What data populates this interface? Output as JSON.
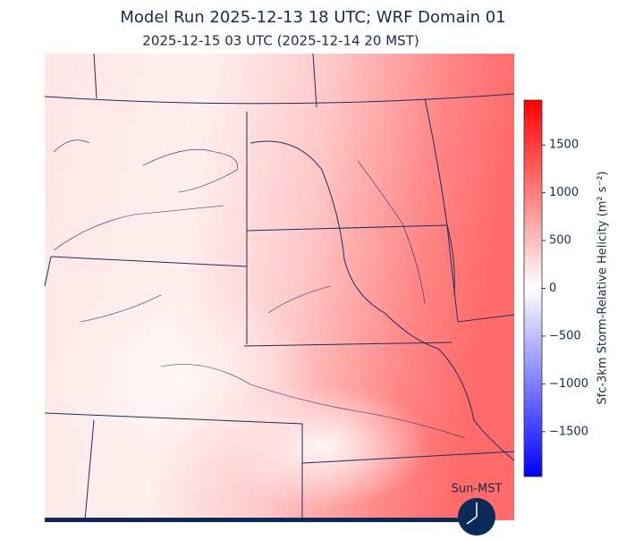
{
  "title": "Model Run 2025-12-13 18 UTC; WRF Domain 01",
  "subtitle": "2025-12-15 03 UTC  (2025-12-14 20 MST)",
  "colorbar": {
    "label": "Sfc-3km Storm-Relative Helicity (m² s⁻²)",
    "lim": [
      -1970,
      1970
    ],
    "ticks": [
      {
        "value": -1500,
        "label": "−1500"
      },
      {
        "value": -1000,
        "label": "−1000"
      },
      {
        "value": -500,
        "label": "−500"
      },
      0,
      500,
      1000,
      1500
    ]
  },
  "clock_label": "Sun-MST"
}
